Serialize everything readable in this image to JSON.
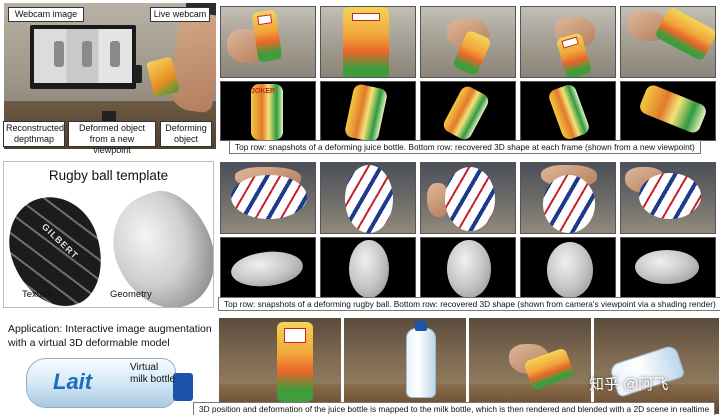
{
  "section_juice": {
    "callouts": {
      "webcam_image": "Webcam image",
      "live_webcam": "Live webcam",
      "reconstructed_depthmap": "Reconstructed depthmap",
      "deformed_object": "Deformed object from a new viewpoint",
      "deforming_object": "Deforming object"
    },
    "caption": "Top row: snapshots of a deforming juice bottle. Bottom row: recovered 3D shape at each frame (shown from a new viewpoint)",
    "bottle_text": "JOKER"
  },
  "section_rugby": {
    "template_title": "Rugby ball template",
    "texture_label": "Texture",
    "geometry_label": "Geometry",
    "ball_text": "GILBERT",
    "caption": "Top row: snapshots of a deforming rugby ball. Bottom row: recovered 3D shape (shown from camera's viewpoint via a shading render)"
  },
  "section_app": {
    "title_line1": "Application: Interactive image augmentation",
    "title_line2": "with a virtual 3D deformable model",
    "milk_brand": "Lait",
    "virtual_label_line1": "Virtual",
    "virtual_label_line2": "milk bottle",
    "caption": "3D position and deformation of the juice bottle is mapped to the milk bottle, which is then rendered and blended with a 2D scene in realtime"
  },
  "watermark": "知乎 @阿飞",
  "colors": {
    "juice_orange": "#e98e23",
    "juice_yellow": "#f4d558",
    "juice_green": "#3f9d3b",
    "rugby_blue": "#1e3a8c",
    "rugby_red": "#c8202c",
    "milk_cap_blue": "#1b54a8"
  }
}
